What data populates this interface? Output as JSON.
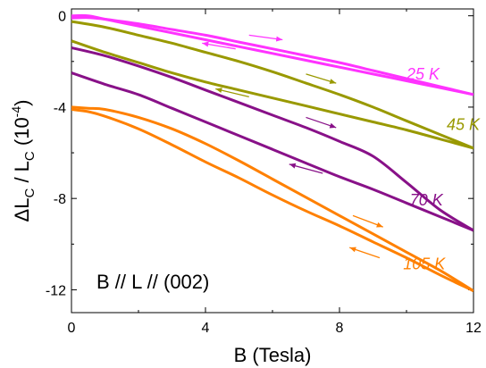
{
  "chart_data": {
    "type": "line",
    "xlabel": "B (Tesla)",
    "ylabel_parts": {
      "delta": "Δ",
      "L1": "L",
      "sub1": "C",
      "slash": " / ",
      "L2": "L",
      "sub2": "C",
      "paren_open": " (10",
      "exp": "-4",
      "paren_close": ")"
    },
    "xlim": [
      0,
      12
    ],
    "ylim": [
      -13,
      0.3
    ],
    "x_ticks": [
      0,
      4,
      8,
      12
    ],
    "y_ticks": [
      0,
      -4,
      -8,
      -12
    ],
    "x_tick_labels": [
      "0",
      "4",
      "8",
      "12"
    ],
    "y_tick_labels": [
      "0",
      "-4",
      "-8",
      "-12"
    ],
    "annotation": "B // L // (002)",
    "series": [
      {
        "name": "25 K",
        "color": "#ff33ff",
        "up": {
          "x": [
            0,
            0.5,
            1,
            2,
            3,
            4,
            5,
            6,
            7,
            8,
            9,
            10,
            11,
            12
          ],
          "y": [
            0.0,
            0.0,
            -0.15,
            -0.45,
            -0.75,
            -1.05,
            -1.35,
            -1.65,
            -1.95,
            -2.25,
            -2.55,
            -2.85,
            -3.15,
            -3.45
          ]
        },
        "down": {
          "x": [
            12,
            11,
            10,
            9,
            8,
            7,
            6,
            5,
            4,
            3,
            2,
            1,
            0.5,
            0
          ],
          "y": [
            -3.45,
            -3.1,
            -2.75,
            -2.4,
            -2.05,
            -1.75,
            -1.45,
            -1.15,
            -0.85,
            -0.6,
            -0.35,
            -0.15,
            -0.08,
            -0.1
          ]
        }
      },
      {
        "name": "45 K",
        "color": "#999900",
        "up": {
          "x": [
            0,
            1,
            2,
            3,
            4,
            5,
            6,
            7,
            8,
            9,
            10,
            11,
            12
          ],
          "y": [
            -0.25,
            -0.5,
            -0.85,
            -1.2,
            -1.6,
            -2.0,
            -2.45,
            -2.95,
            -3.45,
            -4.0,
            -4.6,
            -5.2,
            -5.8
          ]
        },
        "down": {
          "x": [
            12,
            11,
            10,
            9,
            8,
            7,
            6,
            5,
            4,
            3,
            2,
            1,
            0
          ],
          "y": [
            -5.8,
            -5.4,
            -5.0,
            -4.65,
            -4.3,
            -3.95,
            -3.6,
            -3.25,
            -2.9,
            -2.5,
            -2.05,
            -1.6,
            -1.1
          ]
        }
      },
      {
        "name": "70 K",
        "color": "#881188",
        "up": {
          "x": [
            0,
            1,
            2,
            3,
            4,
            5,
            6,
            7,
            8,
            9,
            10,
            11,
            12
          ],
          "y": [
            -1.4,
            -1.75,
            -2.2,
            -2.7,
            -3.25,
            -3.8,
            -4.35,
            -4.9,
            -5.5,
            -6.15,
            -7.3,
            -8.5,
            -9.4
          ]
        },
        "down": {
          "x": [
            12,
            11,
            10,
            9,
            8,
            7,
            6,
            5,
            4,
            3,
            2,
            1,
            0
          ],
          "y": [
            -9.4,
            -8.8,
            -8.2,
            -7.6,
            -7.05,
            -6.45,
            -5.85,
            -5.25,
            -4.65,
            -4.05,
            -3.45,
            -3.0,
            -2.5
          ]
        }
      },
      {
        "name": "105 K",
        "color": "#ff8000",
        "up": {
          "x": [
            0,
            0.5,
            1,
            2,
            3,
            4,
            5,
            6,
            7,
            8,
            9,
            10,
            11,
            12
          ],
          "y": [
            -4.0,
            -4.05,
            -4.1,
            -4.45,
            -4.95,
            -5.6,
            -6.35,
            -7.15,
            -7.95,
            -8.75,
            -9.55,
            -10.35,
            -11.15,
            -12.05
          ]
        },
        "down": {
          "x": [
            12,
            11,
            10,
            9,
            8,
            7,
            6,
            5,
            4,
            3,
            2,
            1,
            0.5,
            0
          ],
          "y": [
            -12.05,
            -11.35,
            -10.6,
            -9.9,
            -9.2,
            -8.55,
            -7.85,
            -7.1,
            -6.4,
            -5.65,
            -4.95,
            -4.4,
            -4.2,
            -4.1
          ]
        }
      }
    ],
    "label_positions": {
      "25 K": {
        "x": 10.0,
        "y": -2.8
      },
      "45 K": {
        "x": 11.2,
        "y": -5.0
      },
      "70 K": {
        "x": 10.1,
        "y": -8.3
      },
      "105 K": {
        "x": 9.9,
        "y": -11.1
      }
    },
    "arrows": [
      {
        "series": "25 K",
        "x0": 5.3,
        "y0": -0.85,
        "x1": 6.3,
        "y1": -1.05
      },
      {
        "series": "25 K",
        "x0": 4.9,
        "y0": -1.45,
        "x1": 3.9,
        "y1": -1.2
      },
      {
        "series": "45 K",
        "x0": 7.0,
        "y0": -2.55,
        "x1": 7.9,
        "y1": -2.95
      },
      {
        "series": "45 K",
        "x0": 5.3,
        "y0": -3.55,
        "x1": 4.3,
        "y1": -3.2
      },
      {
        "series": "70 K",
        "x0": 7.0,
        "y0": -4.45,
        "x1": 7.9,
        "y1": -4.9
      },
      {
        "series": "70 K",
        "x0": 7.5,
        "y0": -6.9,
        "x1": 6.5,
        "y1": -6.5
      },
      {
        "series": "105 K",
        "x0": 8.4,
        "y0": -8.75,
        "x1": 9.3,
        "y1": -9.25
      },
      {
        "series": "105 K",
        "x0": 9.2,
        "y0": -10.6,
        "x1": 8.3,
        "y1": -10.15
      }
    ]
  }
}
